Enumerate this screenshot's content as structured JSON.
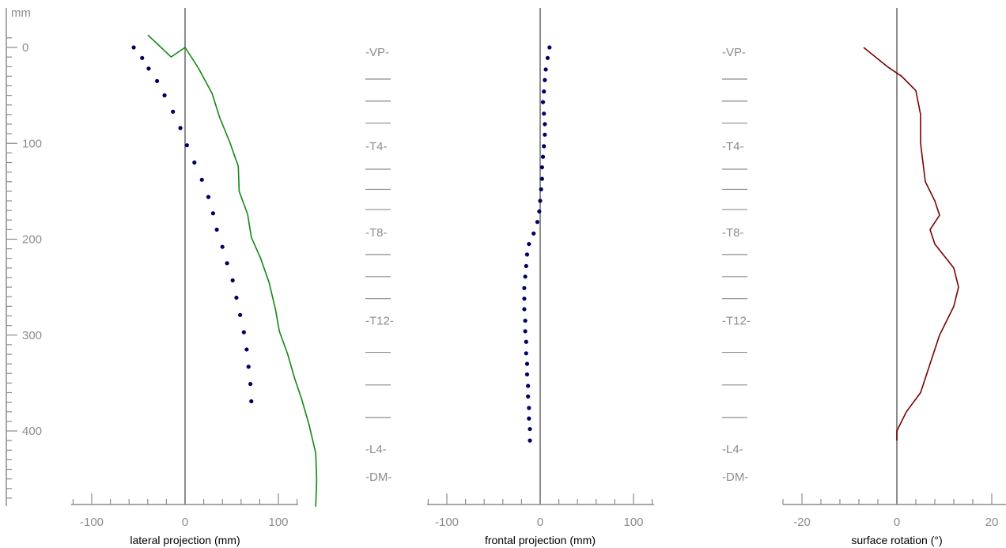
{
  "y_axis": {
    "unit_label": "mm",
    "ticks": [
      0,
      100,
      200,
      300,
      400
    ],
    "tick_labels": [
      "0",
      "100",
      "200",
      "300",
      "400"
    ],
    "range": [
      -13,
      479
    ]
  },
  "vertebra_labels": [
    {
      "label": "-VP-",
      "y": 5
    },
    {
      "label": "",
      "y": 33
    },
    {
      "label": "",
      "y": 56
    },
    {
      "label": "",
      "y": 79
    },
    {
      "label": "-T4-",
      "y": 103
    },
    {
      "label": "",
      "y": 127
    },
    {
      "label": "",
      "y": 148
    },
    {
      "label": "",
      "y": 169
    },
    {
      "label": "-T8-",
      "y": 193
    },
    {
      "label": "",
      "y": 216
    },
    {
      "label": "",
      "y": 239
    },
    {
      "label": "",
      "y": 262
    },
    {
      "label": "-T12-",
      "y": 285
    },
    {
      "label": "",
      "y": 318
    },
    {
      "label": "",
      "y": 352
    },
    {
      "label": "",
      "y": 386
    },
    {
      "label": "-L4-",
      "y": 419
    },
    {
      "label": "-DM-",
      "y": 448
    }
  ],
  "chart_data": [
    {
      "type": "line",
      "xlabel": "lateral projection (mm)",
      "xlim": [
        -120,
        120
      ],
      "xticks": [
        -100,
        0,
        100
      ],
      "xtick_labels": [
        "-100",
        "0",
        "100"
      ],
      "series": [
        {
          "style": "solid",
          "color": "#118811",
          "points": [
            [
              -40,
              -13
            ],
            [
              -30,
              -4
            ],
            [
              -15,
              10
            ],
            [
              0,
              0
            ],
            [
              14,
              21
            ],
            [
              29,
              48
            ],
            [
              37,
              73
            ],
            [
              48,
              99
            ],
            [
              57,
              124
            ],
            [
              58,
              150
            ],
            [
              67,
              174
            ],
            [
              71,
              198
            ],
            [
              81,
              220
            ],
            [
              90,
              245
            ],
            [
              97,
              274
            ],
            [
              101,
              296
            ],
            [
              110,
              320
            ],
            [
              117,
              344
            ],
            [
              125,
              367
            ],
            [
              133,
              394
            ],
            [
              140,
              423
            ],
            [
              141,
              451
            ],
            [
              140,
              479
            ]
          ]
        },
        {
          "style": "dotted",
          "color": "#000066",
          "points": [
            [
              -55,
              0
            ],
            [
              -46,
              11
            ],
            [
              -39,
              22
            ],
            [
              -30,
              35
            ],
            [
              -22,
              50
            ],
            [
              -13,
              67
            ],
            [
              -5,
              84
            ],
            [
              2,
              102
            ],
            [
              10,
              120
            ],
            [
              18,
              138
            ],
            [
              25,
              156
            ],
            [
              30,
              173
            ],
            [
              34,
              190
            ],
            [
              40,
              208
            ],
            [
              45,
              225
            ],
            [
              51,
              243
            ],
            [
              55,
              261
            ],
            [
              59,
              279
            ],
            [
              63,
              297
            ],
            [
              66,
              315
            ],
            [
              68,
              333
            ],
            [
              70,
              351
            ],
            [
              71,
              369
            ]
          ]
        }
      ]
    },
    {
      "type": "line",
      "xlabel": "frontal projection (mm)",
      "xlim": [
        -120,
        120
      ],
      "xticks": [
        -100,
        0,
        100
      ],
      "xtick_labels": [
        "-100",
        "0",
        "100"
      ],
      "series": [
        {
          "style": "dotted",
          "color": "#000066",
          "points": [
            [
              10,
              0
            ],
            [
              8,
              11
            ],
            [
              6,
              23
            ],
            [
              5,
              34
            ],
            [
              4,
              46
            ],
            [
              3,
              57
            ],
            [
              4,
              69
            ],
            [
              5,
              80
            ],
            [
              5,
              91
            ],
            [
              4,
              103
            ],
            [
              3,
              114
            ],
            [
              2,
              125
            ],
            [
              2,
              137
            ],
            [
              1,
              148
            ],
            [
              0,
              160
            ],
            [
              -1,
              171
            ],
            [
              -3,
              182
            ],
            [
              -7,
              194
            ],
            [
              -12,
              205
            ],
            [
              -14,
              216
            ],
            [
              -15,
              228
            ],
            [
              -16,
              239
            ],
            [
              -17,
              251
            ],
            [
              -17,
              262
            ],
            [
              -17,
              273
            ],
            [
              -16,
              285
            ],
            [
              -16,
              296
            ],
            [
              -15,
              307
            ],
            [
              -15,
              319
            ],
            [
              -14,
              330
            ],
            [
              -14,
              341
            ],
            [
              -13,
              353
            ],
            [
              -13,
              364
            ],
            [
              -12,
              376
            ],
            [
              -12,
              387
            ],
            [
              -11,
              398
            ],
            [
              -11,
              410
            ]
          ]
        }
      ]
    },
    {
      "type": "line",
      "xlabel": "surface rotation (°)",
      "xlim": [
        -24,
        24
      ],
      "xticks": [
        -20,
        0,
        20
      ],
      "xtick_labels": [
        "-20",
        "0",
        "20"
      ],
      "series": [
        {
          "style": "solid",
          "color": "#7a0000",
          "points": [
            [
              -7,
              0
            ],
            [
              -2,
              20
            ],
            [
              1,
              30
            ],
            [
              4,
              45
            ],
            [
              5,
              70
            ],
            [
              5,
              100
            ],
            [
              6,
              140
            ],
            [
              8,
              160
            ],
            [
              9,
              175
            ],
            [
              7,
              190
            ],
            [
              8,
              205
            ],
            [
              12,
              230
            ],
            [
              13,
              250
            ],
            [
              12,
              270
            ],
            [
              9,
              300
            ],
            [
              7,
              330
            ],
            [
              5,
              360
            ],
            [
              2,
              380
            ],
            [
              0,
              400
            ],
            [
              0,
              410
            ]
          ]
        }
      ]
    }
  ],
  "colors": {
    "axis": "#8c8c8c",
    "zero_line": "#8c8c8c"
  }
}
